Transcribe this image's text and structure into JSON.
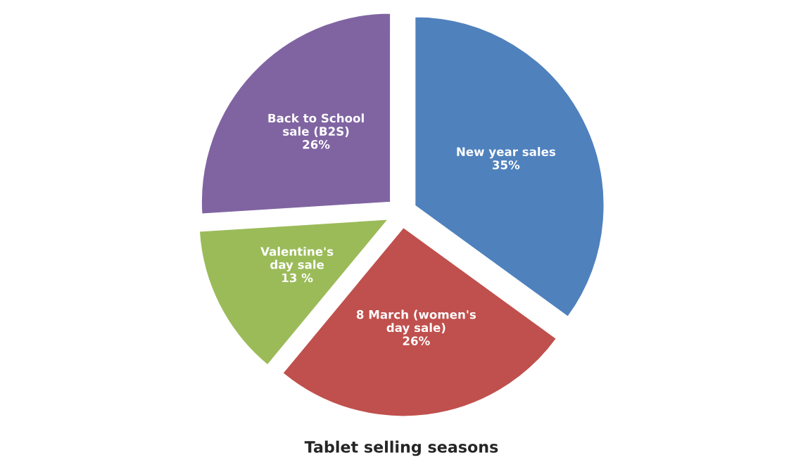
{
  "chart_data": {
    "type": "pie",
    "title": "Tablet selling seasons",
    "categories": [
      "New year sales",
      "8 March (women's day sale)",
      "Valentine's day sale",
      "Back to School sale (B2S)"
    ],
    "values": [
      35,
      26,
      13,
      26
    ],
    "value_labels": [
      "35%",
      "26%",
      "13 %",
      "26%"
    ],
    "colors": [
      "#4f81bd",
      "#c0504d",
      "#9bbb59",
      "#8064a2"
    ],
    "legend": false
  }
}
